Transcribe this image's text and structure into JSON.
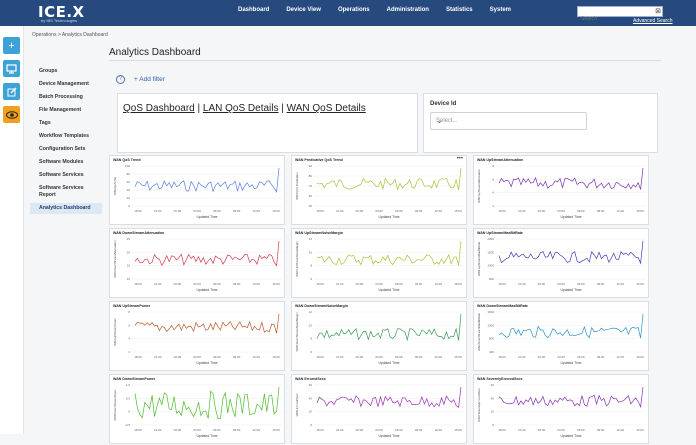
{
  "app": {
    "logo": "ICE.X",
    "logo_sub": "by IBS Technologies"
  },
  "nav": [
    "Dashboard",
    "Device View",
    "Operations",
    "Administration",
    "Statistics",
    "System"
  ],
  "search": {
    "placeholder": "Search",
    "advanced_label": "Advanced Search"
  },
  "left_icons": [
    "plus-icon",
    "monitor-icon",
    "edit-icon",
    "eye-icon"
  ],
  "breadcrumb": "Operations > Analytics Dashboard",
  "menu": {
    "items": [
      "Groups",
      "Device Management",
      "Batch Processing",
      "File Management",
      "Tags",
      "Workflow Templates",
      "Configuration Sets",
      "Software Modules",
      "Software Services",
      "Software Services Report",
      "Analytics Dashboard"
    ],
    "active": "Analytics Dashboard"
  },
  "page": {
    "title": "Analytics Dashboard",
    "help": "?",
    "add_filter": "+ Add filter",
    "links": [
      "QoS Dashboard",
      "LAN QoS Details",
      "WAN QoS Details"
    ],
    "device_id_label": "Device Id",
    "device_id_placeholder": "Select..."
  },
  "charts": {
    "x_label": "Updated Time",
    "x_ticks": [
      "18:00",
      "21:00",
      "00:00",
      "03:00",
      "06:00",
      "09:00",
      "12:00",
      "15:00"
    ],
    "panels": [
      {
        "title": "WAN QoS Trend",
        "ylabel": "WAN QoS (%)",
        "color": "#5b7fe0",
        "yticks": [
          "100",
          "80",
          "60",
          "40",
          "20",
          "0"
        ],
        "more": ""
      },
      {
        "title": "WAN Predicative QoS Trend",
        "ylabel": "WAN QoS Predication",
        "color": "#a8c23a",
        "yticks": [
          "90",
          "80",
          "70",
          "60",
          "50"
        ],
        "more": "•••"
      },
      {
        "title": "WAN UpStreamAttenuation",
        "ylabel": "WAN UpStreamAttenuation",
        "color": "#7b2fb5",
        "yticks": [
          "8",
          "6",
          "4",
          "2"
        ],
        "more": ""
      },
      {
        "title": "WAN DownStreamAttenuation",
        "ylabel": "WAN DownStreamAttenuation",
        "color": "#d03c50",
        "yticks": [
          "25",
          "20",
          "15",
          "10"
        ],
        "more": ""
      },
      {
        "title": "WAN UpStreamNoiseMargin",
        "ylabel": "WAN UpStreamNoiseMargin",
        "color": "#a8c23a",
        "yticks": [
          "12",
          "10",
          "8",
          "6"
        ],
        "more": ""
      },
      {
        "title": "WAN UpStreamMaxBitRate",
        "ylabel": "WAN UpStreamMaxBitRate",
        "color": "#3f3fb5",
        "yticks": [
          "2000",
          "1500",
          "1000",
          "500"
        ],
        "more": ""
      },
      {
        "title": "WAN UpStreamPower",
        "ylabel": "WAN UpStreamPower",
        "color": "#b85a2a",
        "yticks": [
          "8",
          "6",
          "4",
          "2"
        ],
        "more": ""
      },
      {
        "title": "WAN DownStreamNoiseMargin",
        "ylabel": "WAN DownStreamNoiseMargin",
        "color": "#3a9a5a",
        "yticks": [
          "12",
          "10",
          "8",
          "6"
        ],
        "more": ""
      },
      {
        "title": "WAN DownStreamMaxBitRate",
        "ylabel": "WAN DownStreamMaxBitRate",
        "color": "#2f8fc8",
        "yticks": [
          "1600",
          "1200",
          "800",
          "400"
        ],
        "more": ""
      },
      {
        "title": "WAN DownStreamPower",
        "ylabel": "WAN DownStreamPower",
        "color": "#4cbb2a",
        "yticks": [
          "1.0",
          "0.5",
          "0",
          "-0.5"
        ],
        "more": ""
      },
      {
        "title": "WAN ErroredSecs",
        "ylabel": "WAN ErroredSecs",
        "color": "#9a2fb5",
        "yticks": [
          "60",
          "40",
          "20",
          "0"
        ],
        "more": ""
      },
      {
        "title": "WAN SeverelyErroredSecs",
        "ylabel": "WAN SeverelyErroredSecs",
        "color": "#8a2fb5",
        "yticks": [
          "60",
          "40",
          "20",
          "0"
        ],
        "more": ""
      }
    ]
  }
}
